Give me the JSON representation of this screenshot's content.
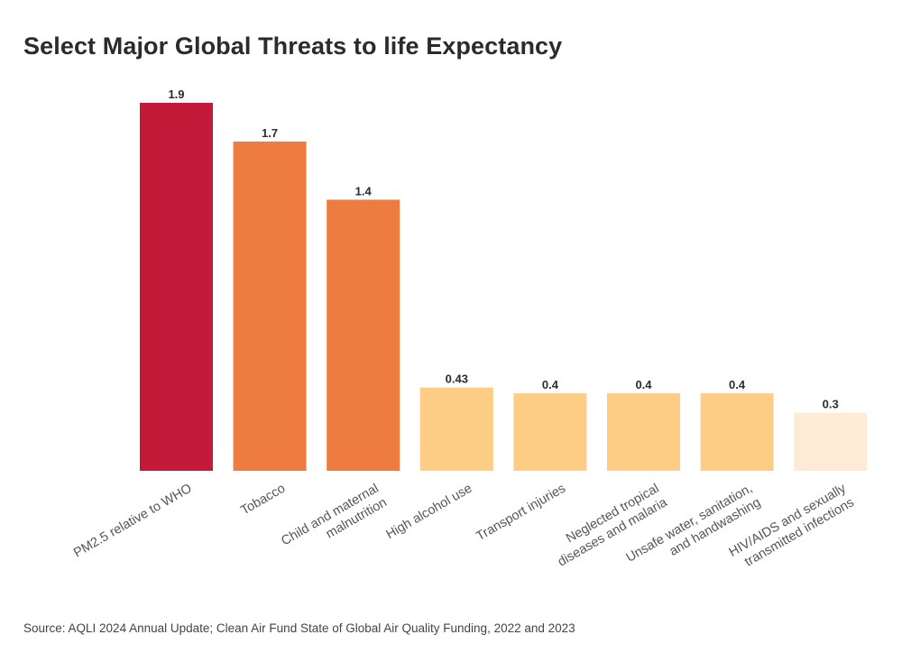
{
  "chart_data": {
    "type": "bar",
    "title": "Select Major Global Threats to life Expectancy",
    "xlabel": "",
    "ylabel": "",
    "ylim": [
      0,
      1.9
    ],
    "grid": false,
    "categories": [
      [
        "PM2.5 relative to WHO"
      ],
      [
        "Tobacco"
      ],
      [
        "Child and maternal",
        "malnutrition"
      ],
      [
        "High alcohol use"
      ],
      [
        "Transport injuries"
      ],
      [
        "Neglected tropical",
        "diseases and malaria"
      ],
      [
        "Unsafe water, sanitation,",
        "and handwashing"
      ],
      [
        "HIV/AIDS and sexually",
        "transmitted infections"
      ]
    ],
    "values": [
      1.9,
      1.7,
      1.4,
      0.43,
      0.4,
      0.4,
      0.4,
      0.3
    ],
    "value_labels": [
      "1.9",
      "1.7",
      "1.4",
      "0.43",
      "0.4",
      "0.4",
      "0.4",
      "0.3"
    ],
    "colors": [
      "#c21a38",
      "#ee7b40",
      "#ee7b40",
      "#fdcd86",
      "#fdcd86",
      "#fdcd86",
      "#fdcd86",
      "#fdebd6"
    ],
    "source": "Source: AQLI 2024 Annual Update; Clean Air Fund State of Global Air Quality Funding, 2022 and 2023"
  }
}
